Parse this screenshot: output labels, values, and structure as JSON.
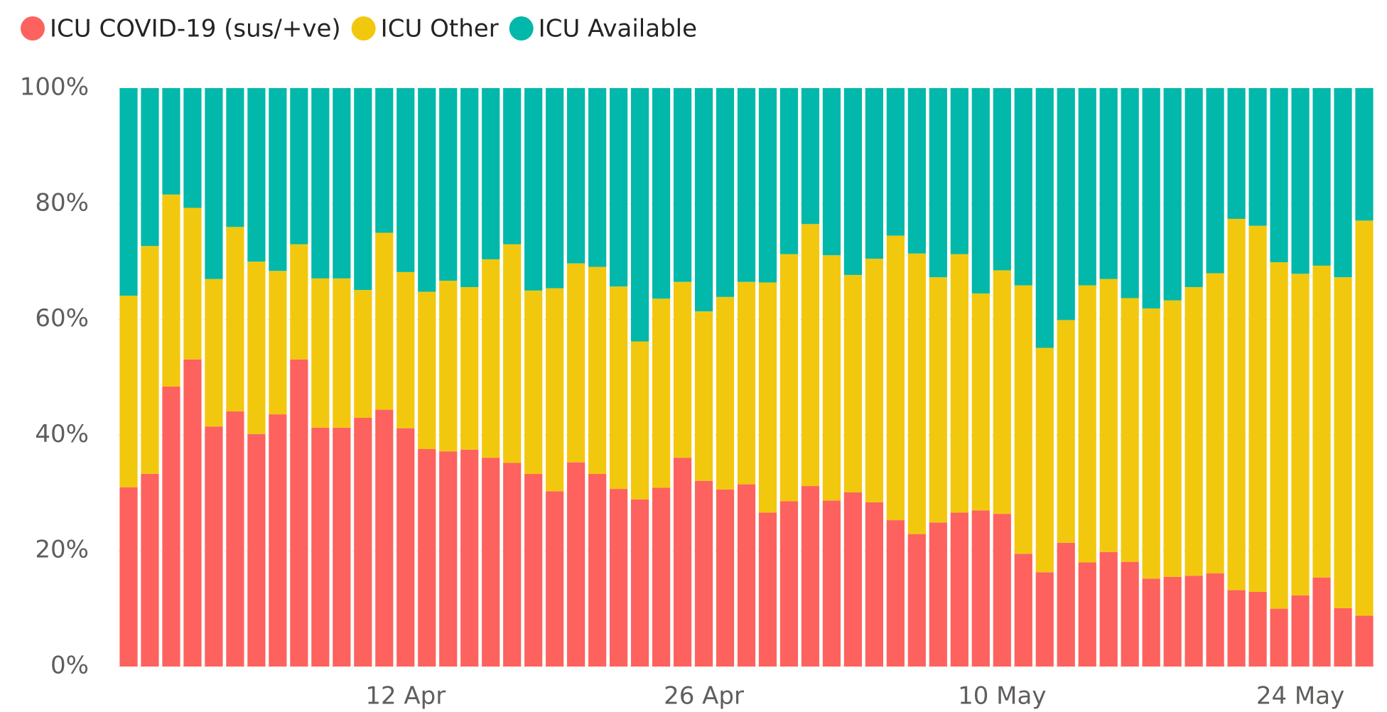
{
  "chart_data": {
    "type": "stacked_bar",
    "categories": [
      null,
      null,
      null,
      null,
      null,
      null,
      null,
      null,
      null,
      null,
      null,
      null,
      null,
      "12 Apr",
      null,
      null,
      null,
      null,
      null,
      null,
      null,
      null,
      null,
      null,
      null,
      null,
      null,
      "26 Apr",
      null,
      null,
      null,
      null,
      null,
      null,
      null,
      null,
      null,
      null,
      null,
      null,
      null,
      "10 May",
      null,
      null,
      null,
      null,
      null,
      null,
      null,
      null,
      null,
      null,
      null,
      null,
      null,
      "24 May",
      null,
      null,
      null
    ],
    "series": [
      {
        "name": "ICU COVID-19 (sus/+ve)",
        "color": "#fd625e",
        "values": [
          31.0,
          33.3,
          48.4,
          53.1,
          41.5,
          44.1,
          40.2,
          43.6,
          53.1,
          41.3,
          41.3,
          43.0,
          44.4,
          41.2,
          37.6,
          37.2,
          37.5,
          36.1,
          35.2,
          33.3,
          30.3,
          35.3,
          33.3,
          30.7,
          28.9,
          30.9,
          36.1,
          32.1,
          30.6,
          31.5,
          26.6,
          28.6,
          31.2,
          28.7,
          30.1,
          28.4,
          25.3,
          22.9,
          24.9,
          26.6,
          27.0,
          26.4,
          19.5,
          16.3,
          21.4,
          18.0,
          19.8,
          18.1,
          15.2,
          15.5,
          15.7,
          16.1,
          13.2,
          12.9,
          10.0,
          12.3,
          15.4,
          10.1,
          8.8
        ]
      },
      {
        "name": "ICU Other",
        "color": "#f2c80f",
        "values": [
          33.1,
          39.4,
          33.2,
          26.2,
          25.5,
          31.9,
          29.8,
          24.8,
          19.9,
          25.8,
          25.8,
          22.1,
          30.6,
          27.0,
          27.2,
          29.5,
          28.1,
          34.3,
          37.8,
          31.7,
          35.1,
          34.4,
          35.8,
          35.0,
          27.3,
          32.7,
          30.4,
          29.3,
          33.3,
          35.0,
          39.8,
          42.7,
          45.3,
          42.4,
          37.6,
          42.1,
          49.2,
          48.5,
          42.4,
          44.7,
          37.5,
          42.1,
          46.4,
          38.8,
          38.5,
          47.9,
          47.2,
          45.6,
          46.7,
          47.8,
          49.9,
          51.9,
          64.2,
          63.3,
          59.9,
          55.6,
          53.9,
          57.2,
          68.3
        ]
      },
      {
        "name": "ICU Available",
        "color": "#01b8aa",
        "values": [
          35.9,
          27.3,
          18.4,
          20.7,
          33.0,
          24.0,
          30.0,
          31.6,
          27.0,
          32.9,
          32.9,
          34.9,
          25.0,
          31.8,
          35.2,
          33.3,
          34.4,
          29.6,
          27.0,
          35.0,
          34.6,
          30.3,
          30.9,
          34.3,
          43.8,
          36.4,
          33.5,
          38.6,
          36.1,
          33.5,
          33.6,
          28.7,
          23.5,
          28.9,
          32.3,
          29.5,
          25.5,
          28.6,
          32.7,
          28.7,
          35.5,
          31.5,
          34.1,
          44.9,
          40.1,
          34.1,
          33.0,
          36.3,
          38.1,
          36.7,
          34.4,
          32.0,
          22.6,
          23.8,
          30.1,
          32.1,
          30.7,
          32.7,
          22.9
        ]
      }
    ],
    "ylim": [
      0,
      100
    ],
    "yticks": [
      {
        "value": 0,
        "label": "0%"
      },
      {
        "value": 20,
        "label": "20%"
      },
      {
        "value": 40,
        "label": "40%"
      },
      {
        "value": 60,
        "label": "60%"
      },
      {
        "value": 80,
        "label": "80%"
      },
      {
        "value": 100,
        "label": "100%"
      }
    ],
    "grid": true,
    "legend": "top-left"
  }
}
